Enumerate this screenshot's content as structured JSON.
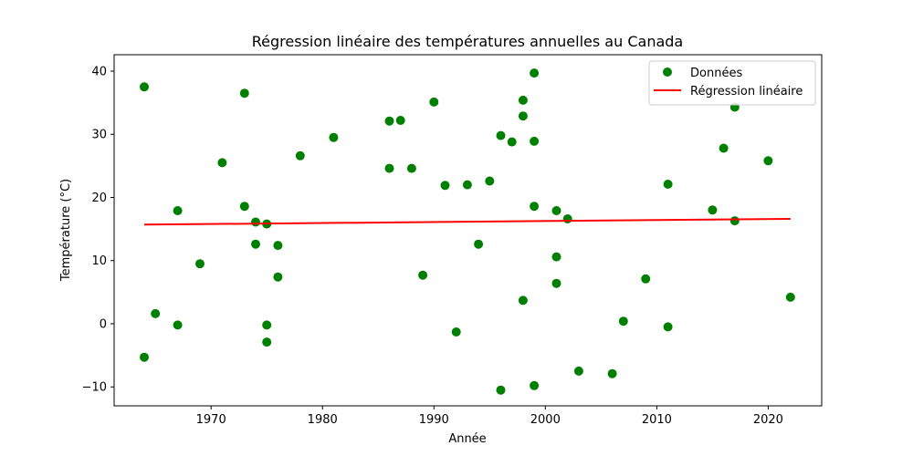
{
  "chart_data": {
    "type": "scatter",
    "title": "Régression linéaire des températures annuelles au Canada",
    "xlabel": "Année",
    "ylabel": "Température (°C)",
    "xlim": [
      1961.3,
      2024.8
    ],
    "ylim": [
      -13.0,
      42.6
    ],
    "x_ticks": [
      1970,
      1980,
      1990,
      2000,
      2010,
      2020
    ],
    "y_ticks": [
      -10,
      0,
      10,
      20,
      30,
      40
    ],
    "grid": false,
    "legend_position": "top-right",
    "colors": {
      "points": "#008000",
      "regression": "#ff0000"
    },
    "series": [
      {
        "name": "Données",
        "kind": "scatter",
        "points": [
          {
            "x": 1964,
            "y": 37.5
          },
          {
            "x": 1964,
            "y": -5.3
          },
          {
            "x": 1965,
            "y": 1.6
          },
          {
            "x": 1967,
            "y": 17.9
          },
          {
            "x": 1967,
            "y": -0.2
          },
          {
            "x": 1969,
            "y": 9.5
          },
          {
            "x": 1971,
            "y": 25.5
          },
          {
            "x": 1973,
            "y": 36.5
          },
          {
            "x": 1973,
            "y": 18.6
          },
          {
            "x": 1974,
            "y": 16.1
          },
          {
            "x": 1974,
            "y": 12.6
          },
          {
            "x": 1975,
            "y": 15.8
          },
          {
            "x": 1975,
            "y": -0.2
          },
          {
            "x": 1975,
            "y": -2.9
          },
          {
            "x": 1976,
            "y": 12.4
          },
          {
            "x": 1976,
            "y": 7.4
          },
          {
            "x": 1978,
            "y": 26.6
          },
          {
            "x": 1981,
            "y": 29.5
          },
          {
            "x": 1986,
            "y": 32.1
          },
          {
            "x": 1986,
            "y": 24.6
          },
          {
            "x": 1987,
            "y": 32.2
          },
          {
            "x": 1988,
            "y": 24.6
          },
          {
            "x": 1989,
            "y": 7.7
          },
          {
            "x": 1990,
            "y": 35.1
          },
          {
            "x": 1991,
            "y": 21.9
          },
          {
            "x": 1992,
            "y": -1.3
          },
          {
            "x": 1993,
            "y": 22.0
          },
          {
            "x": 1994,
            "y": 12.6
          },
          {
            "x": 1995,
            "y": 22.6
          },
          {
            "x": 1996,
            "y": 29.8
          },
          {
            "x": 1996,
            "y": -10.5
          },
          {
            "x": 1997,
            "y": 28.8
          },
          {
            "x": 1998,
            "y": 35.4
          },
          {
            "x": 1998,
            "y": 32.9
          },
          {
            "x": 1998,
            "y": 3.7
          },
          {
            "x": 1999,
            "y": 39.7
          },
          {
            "x": 1999,
            "y": 28.9
          },
          {
            "x": 1999,
            "y": 18.6
          },
          {
            "x": 1999,
            "y": -9.8
          },
          {
            "x": 2001,
            "y": 17.9
          },
          {
            "x": 2001,
            "y": 10.6
          },
          {
            "x": 2001,
            "y": 6.4
          },
          {
            "x": 2002,
            "y": 16.6
          },
          {
            "x": 2003,
            "y": -7.5
          },
          {
            "x": 2006,
            "y": -7.9
          },
          {
            "x": 2007,
            "y": 0.4
          },
          {
            "x": 2009,
            "y": 7.1
          },
          {
            "x": 2011,
            "y": 22.1
          },
          {
            "x": 2011,
            "y": -0.5
          },
          {
            "x": 2015,
            "y": 18.0
          },
          {
            "x": 2016,
            "y": 27.8
          },
          {
            "x": 2017,
            "y": 34.3
          },
          {
            "x": 2017,
            "y": 16.3
          },
          {
            "x": 2020,
            "y": 25.8
          },
          {
            "x": 2022,
            "y": 4.2
          }
        ]
      },
      {
        "name": "Régression linéaire",
        "kind": "line",
        "x": [
          1964,
          2022
        ],
        "y": [
          15.7,
          16.6
        ]
      }
    ]
  }
}
